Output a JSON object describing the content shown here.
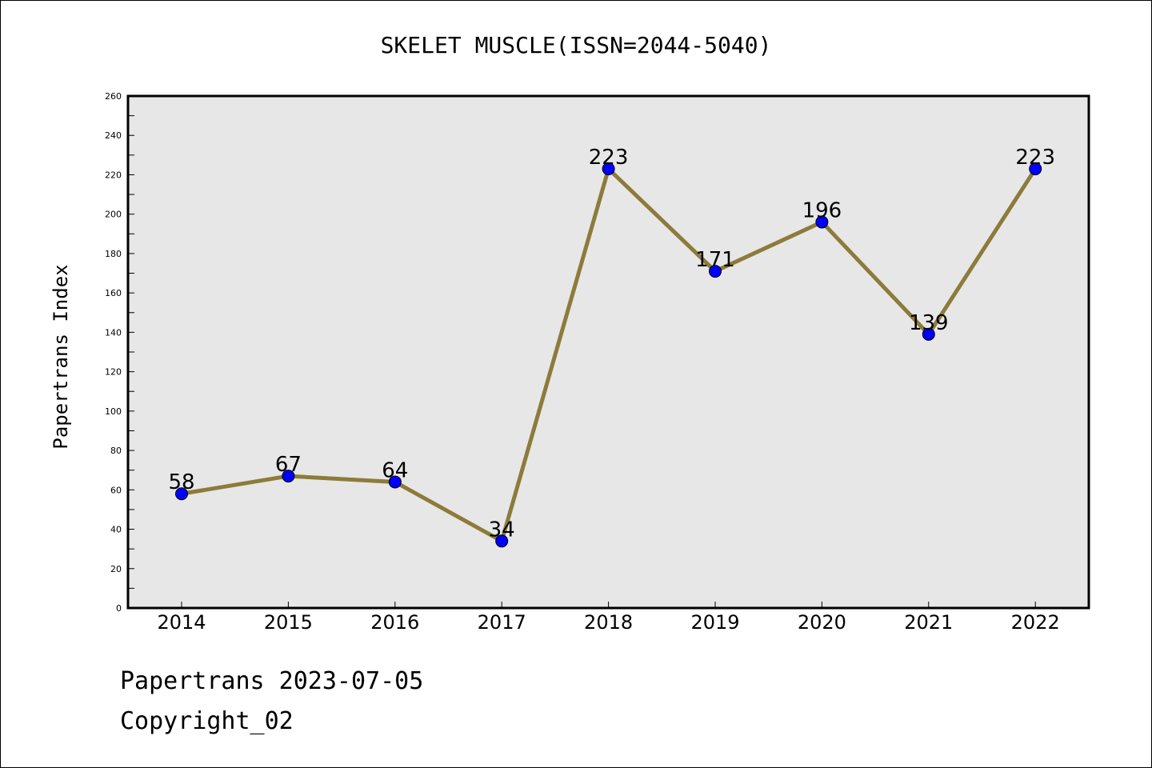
{
  "chart_data": {
    "type": "line",
    "title": "SKELET MUSCLE(ISSN=2044-5040)",
    "xlabel": "",
    "ylabel": "Papertrans Index",
    "categories": [
      "2014",
      "2015",
      "2016",
      "2017",
      "2018",
      "2019",
      "2020",
      "2021",
      "2022"
    ],
    "series": [
      {
        "values": [
          58,
          67,
          64,
          34,
          223,
          171,
          196,
          139,
          223
        ]
      }
    ],
    "ylim": [
      0,
      260
    ],
    "yticks": [
      0,
      20,
      40,
      60,
      80,
      100,
      120,
      140,
      160,
      180,
      200,
      220,
      240,
      260
    ],
    "grid": false,
    "colors": {
      "line": "#8c7b3a",
      "marker": "#0000ff",
      "plot_bg": "#e7e7e7"
    }
  },
  "footer": {
    "line1": "Papertrans 2023-07-05",
    "line2": "Copyright_02"
  }
}
